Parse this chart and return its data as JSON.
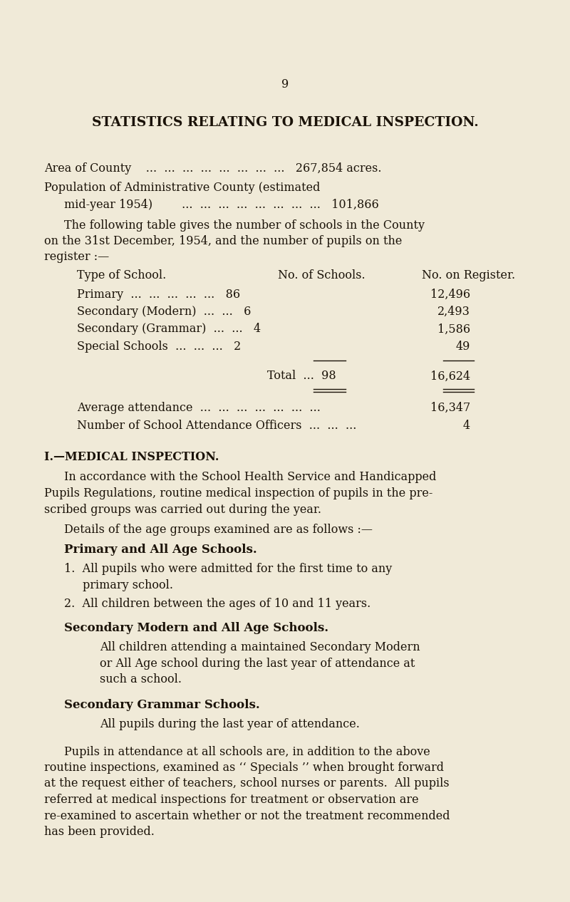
{
  "bg_color": "#f0ead8",
  "text_color": "#1a1208",
  "page_number": "9",
  "title": "STATISTICS RELATING TO MEDICAL INSPECTION.",
  "area_line": "Area of County    ...  ...  ...  ...  ...  ...  ...  ...   267,854 acres.",
  "pop_line1": "Population of Administrative County (estimated",
  "pop_line2": "mid-year 1954)        ...  ...  ...  ...  ...  ...  ...  ...   101,866",
  "intro_line1": "The following table gives the number of schools in the County",
  "intro_line2": "on the 31st December, 1954, and the number of pupils on the",
  "intro_line3": "register :—",
  "col1_header": "Type of School.",
  "col2_header": "No. of Schools.",
  "col3_header": "No. on Register.",
  "row1_label": "Primary  ...  ...  ...  ...  ...   86",
  "row1_val": "12,496",
  "row2_label": "Secondary (Modern)  ...  ...   6",
  "row2_val": "2,493",
  "row3_label": "Secondary (Grammar)  ...  ...   4",
  "row3_val": "1,586",
  "row4_label": "Special Schools  ...  ...  ...   2",
  "row4_val": "49",
  "total_label": "Total  ...  98",
  "total_val": "16,624",
  "avg_label": "Average attendance  ...  ...  ...  ...  ...  ...  ...",
  "avg_val": "16,347",
  "officers_label": "Number of School Attendance Officers  ...  ...  ...",
  "officers_val": "4",
  "section_head": "I.—MEDICAL INSPECTION.",
  "s1_line1": "In accordance with the School Health Service and Handicapped",
  "s1_line2": "Pupils Regulations, routine medical inspection of pupils in the pre-",
  "s1_line3": "scribed groups was carried out during the year.",
  "details_line": "Details of the age groups examined are as follows :—",
  "primary_head": "Primary and All Age Schools.",
  "p1_line1": "1.  All pupils who were admitted for the first time to any",
  "p1_line2": "primary school.",
  "p2_line": "2.  All children between the ages of 10 and 11 years.",
  "sec_mod_head": "Secondary Modern and All Age Schools.",
  "sm_line1": "All children attending a maintained Secondary Modern",
  "sm_line2": "or All Age school during the last year of attendance at",
  "sm_line3": "such a school.",
  "sec_gram_head": "Secondary Grammar Schools.",
  "sg_line": "All pupils during the last year of attendance.",
  "fin_line1": "Pupils in attendance at all schools are, in addition to the above",
  "fin_line2": "routine inspections, examined as ‘‘ Specials ’’ when brought forward",
  "fin_line3": "at the request either of teachers, school nurses or parents.  All pupils",
  "fin_line4": "referred at medical inspections for treatment or observation are",
  "fin_line5": "re-examined to ascertain whether or not the treatment recommended",
  "fin_line6": "has been provided."
}
